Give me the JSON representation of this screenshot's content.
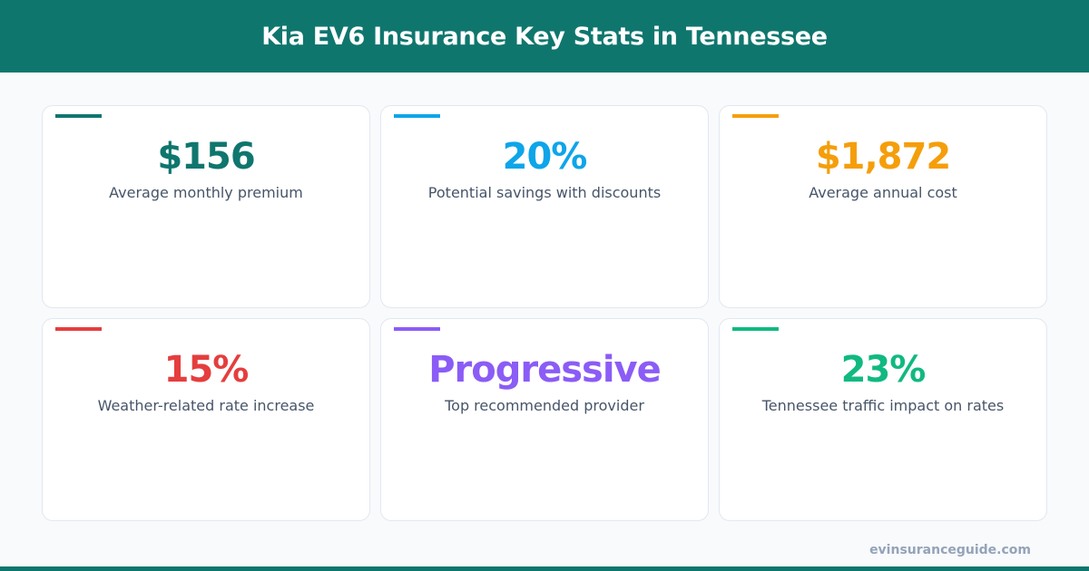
{
  "header": {
    "title": "Kia EV6 Insurance Key Stats in Tennessee"
  },
  "stats": [
    {
      "value": "$156",
      "label": "Average monthly premium",
      "color": "#0f766e"
    },
    {
      "value": "20%",
      "label": "Potential savings with discounts",
      "color": "#0ea5e9"
    },
    {
      "value": "$1,872",
      "label": "Average annual cost",
      "color": "#f59e0b"
    },
    {
      "value": "15%",
      "label": "Weather-related rate increase",
      "color": "#e53e3e"
    },
    {
      "value": "Progressive",
      "label": "Top recommended provider",
      "color": "#8b5cf6"
    },
    {
      "value": "23%",
      "label": "Tennessee traffic impact on rates",
      "color": "#10b981"
    }
  ],
  "footer": {
    "site": "evinsuranceguide.com"
  }
}
